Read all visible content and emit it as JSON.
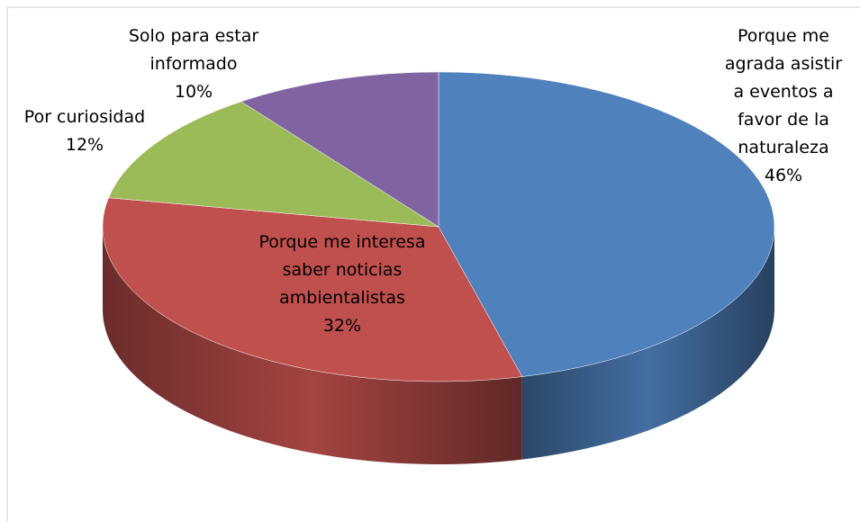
{
  "chart_data": {
    "type": "pie",
    "categories": [
      "Porque me agrada asistir a eventos a favor de la naturaleza",
      "Porque me interesa saber noticias ambientalistas",
      "Por curiosidad",
      "Solo para estar informado"
    ],
    "values": [
      46,
      32,
      12,
      10
    ],
    "value_labels": [
      "46%",
      "32%",
      "12%",
      "10%"
    ],
    "colors": [
      "#4f81bd",
      "#c0504d",
      "#9bbb59",
      "#8064a2"
    ]
  }
}
